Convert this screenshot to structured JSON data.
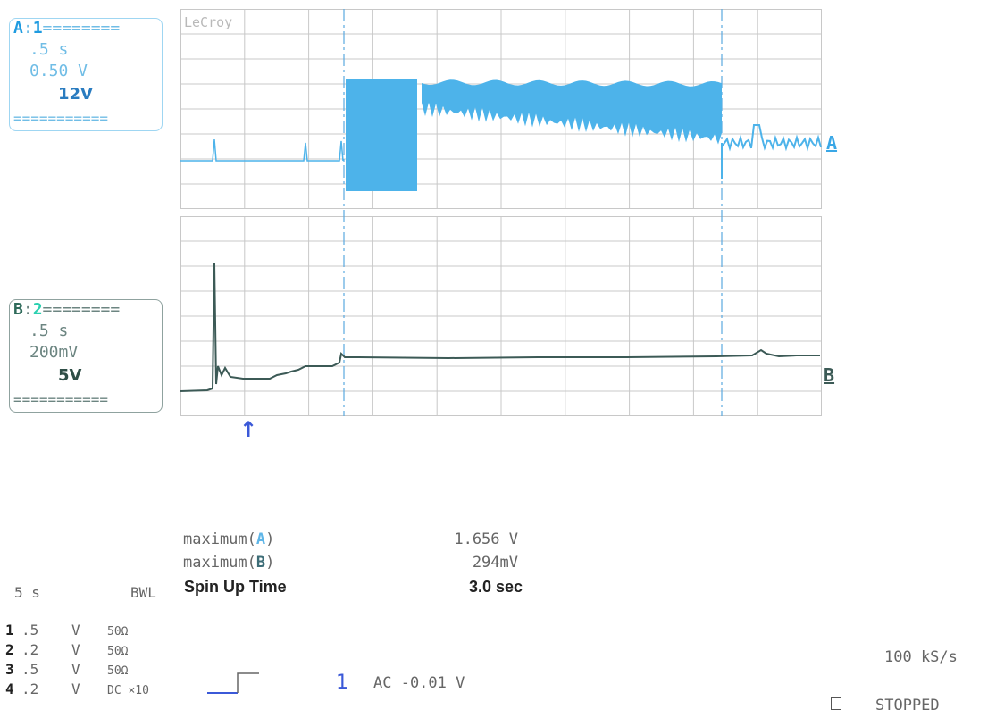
{
  "brand": "LeCroy",
  "channel_a": {
    "label": "A",
    "number": "1",
    "timebase": ".5 s",
    "scale": "0.50 V",
    "name": "12V",
    "color": "#4db3ea"
  },
  "channel_b": {
    "label": "B",
    "number": "2",
    "timebase": ".5 s",
    "scale": "200mV",
    "name": "5V",
    "color": "#3c5a56"
  },
  "trace_tags": {
    "a": "A",
    "b": "B"
  },
  "measurements": {
    "rows": [
      {
        "label_prefix": "maximum(",
        "channel": "A",
        "label_suffix": ")",
        "value": "1.656 V"
      },
      {
        "label_prefix": "maximum(",
        "channel": "B",
        "label_suffix": ")",
        "value": "294mV"
      }
    ],
    "spin_up_label": "Spin Up Time",
    "spin_up_value": "3.0 sec"
  },
  "status": {
    "timebase": "5  s",
    "bwl": "BWL",
    "channels": [
      {
        "n": "1",
        "volts": ".5",
        "unit": "V",
        "coupling": "50Ω"
      },
      {
        "n": "2",
        "volts": ".2",
        "unit": "V",
        "coupling": "50Ω"
      },
      {
        "n": "3",
        "volts": ".5",
        "unit": "V",
        "coupling": "50Ω"
      },
      {
        "n": "4",
        "volts": ".2",
        "unit": "V",
        "coupling": "DC ×10"
      }
    ],
    "trigger_source": "1",
    "trigger_info": "AC -0.01 V",
    "sample_rate": "100 kS/s",
    "run_state": "STOPPED"
  },
  "colors": {
    "grid": "#c8c8c8",
    "cursor": "#5aa9e0",
    "trace_a": "#4db3ea",
    "trace_b": "#3c5a56",
    "accent_blue": "#3b59d8"
  }
}
